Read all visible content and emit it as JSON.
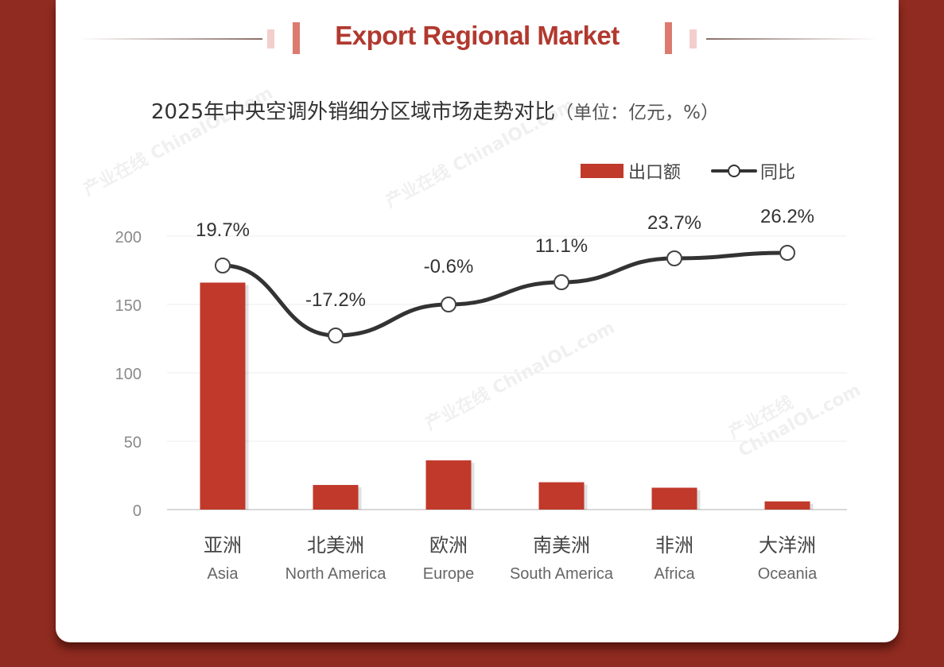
{
  "header": {
    "title": "Export Regional Market"
  },
  "chart_title": {
    "main": "2025年中央空调外销细分区域市场走势对比",
    "unit": "（单位：亿元，%）"
  },
  "legend": {
    "bar_label": "出口额",
    "line_label": "同比"
  },
  "colors": {
    "bar": "#c0392b",
    "line": "#333333",
    "frame": "#8f2b20",
    "title": "#b1392f"
  },
  "watermark": "产业在线 ChinaIOL.com",
  "chart_data": {
    "type": "bar+line",
    "title": "2025年中央空调外销细分区域市场走势对比（单位：亿元，%）",
    "categories": [
      "亚洲 Asia",
      "北美洲 North America",
      "欧洲 Europe",
      "南美洲 South America",
      "非洲 Africa",
      "大洋洲 Oceania"
    ],
    "categories_cn": [
      "亚洲",
      "北美洲",
      "欧洲",
      "南美洲",
      "非洲",
      "大洋洲"
    ],
    "categories_en": [
      "Asia",
      "North America",
      "Europe",
      "South America",
      "Africa",
      "Oceania"
    ],
    "series": [
      {
        "name": "出口额",
        "type": "bar",
        "unit": "亿元",
        "values": [
          166,
          18,
          36,
          20,
          16,
          6
        ]
      },
      {
        "name": "同比",
        "type": "line",
        "unit": "%",
        "values": [
          19.7,
          -17.2,
          -0.6,
          11.1,
          23.7,
          26.2
        ],
        "labels": [
          "19.7%",
          "-17.2%",
          "-0.6%",
          "11.1%",
          "23.7%",
          "26.2%"
        ]
      }
    ],
    "yticks": [
      0,
      50,
      100,
      150,
      200
    ],
    "ylim": [
      0,
      200
    ],
    "xlabel": "",
    "ylabel": "",
    "grid": true,
    "legend_position": "top-right"
  }
}
